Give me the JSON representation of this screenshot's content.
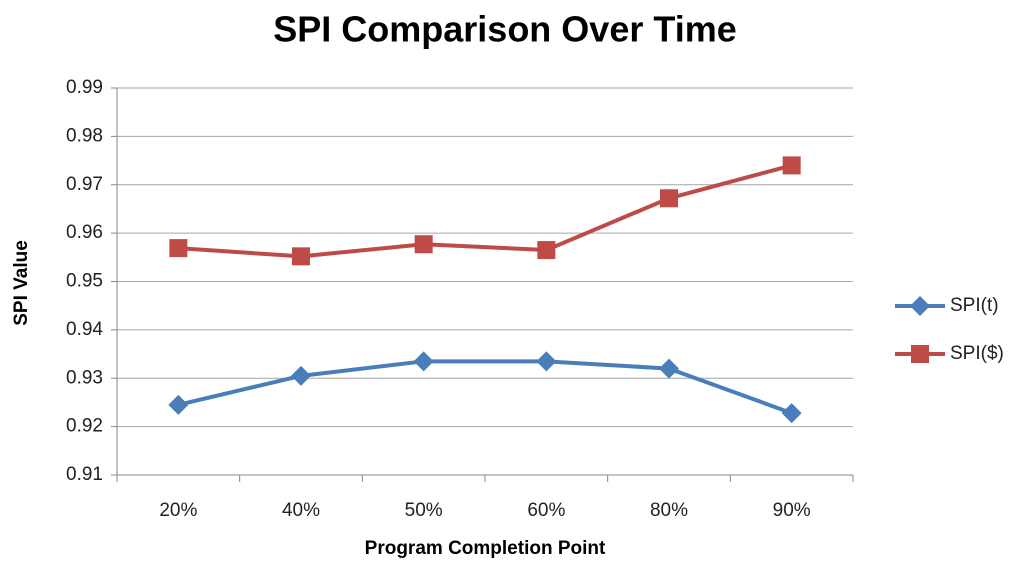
{
  "chart_data": {
    "type": "line",
    "title": "SPI Comparison Over Time",
    "x_label": "Program Completion Point",
    "y_label": "SPI Value",
    "categories": [
      "20%",
      "40%",
      "50%",
      "60%",
      "80%",
      "90%"
    ],
    "series": [
      {
        "name": "SPI(t)",
        "color": "#4a7ebb",
        "marker": "diamond",
        "values": [
          0.9245,
          0.9305,
          0.9335,
          0.9335,
          0.932,
          0.9228
        ]
      },
      {
        "name": "SPI($)",
        "color": "#be4b48",
        "marker": "square",
        "values": [
          0.9569,
          0.9552,
          0.9577,
          0.9565,
          0.9672,
          0.974
        ]
      }
    ],
    "ylim": [
      0.91,
      0.99
    ],
    "yticks": [
      0.91,
      0.92,
      0.93,
      0.94,
      0.95,
      0.96,
      0.97,
      0.98,
      0.99
    ],
    "grid": true,
    "legend": "right"
  }
}
